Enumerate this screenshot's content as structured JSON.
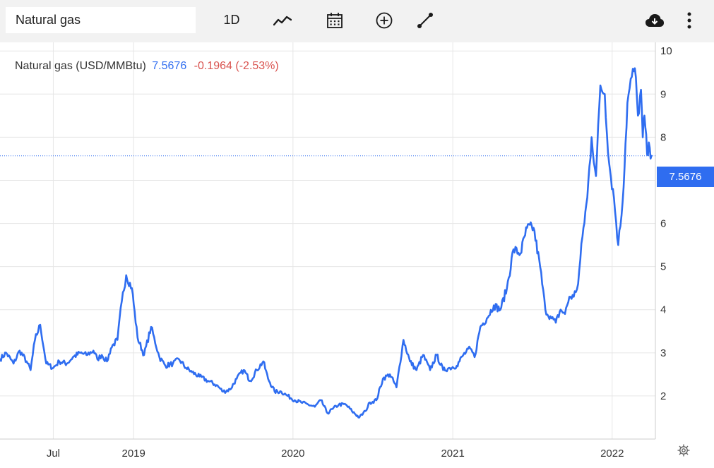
{
  "toolbar": {
    "search_value": "Natural gas",
    "period_label": "1D",
    "icons": [
      "chart-type-icon",
      "calendar-icon",
      "add-indicator-icon",
      "draw-line-icon",
      "download-cloud-icon",
      "more-options-icon"
    ]
  },
  "legend": {
    "name": "Natural gas (USD/MMBtu)",
    "last": "7.5676",
    "change": "-0.1964 (-2.53%)"
  },
  "price_label": "7.5676",
  "colors": {
    "line": "#2f6df0",
    "change": "#d9534f",
    "grid": "#e6e6e6",
    "toolbar_bg": "#f2f2f2"
  },
  "chart_data": {
    "type": "line",
    "title": "",
    "xlabel": "",
    "ylabel": "",
    "series": [
      {
        "name": "Natural gas (USD/MMBtu)",
        "x": [
          "2018-03-01",
          "2018-03-15",
          "2018-04-01",
          "2018-04-15",
          "2018-05-01",
          "2018-05-10",
          "2018-05-20",
          "2018-06-01",
          "2018-06-15",
          "2018-07-01",
          "2018-07-15",
          "2018-08-01",
          "2018-08-15",
          "2018-09-01",
          "2018-09-15",
          "2018-10-01",
          "2018-10-10",
          "2018-10-20",
          "2018-11-01",
          "2018-11-10",
          "2018-11-16",
          "2018-11-25",
          "2018-12-05",
          "2018-12-15",
          "2018-12-28",
          "2019-01-10",
          "2019-01-25",
          "2019-02-10",
          "2019-03-01",
          "2019-03-15",
          "2019-04-01",
          "2019-04-15",
          "2019-05-01",
          "2019-05-15",
          "2019-06-01",
          "2019-06-20",
          "2019-07-10",
          "2019-07-25",
          "2019-08-10",
          "2019-08-25",
          "2019-09-10",
          "2019-09-25",
          "2019-10-10",
          "2019-10-25",
          "2019-11-05",
          "2019-11-20",
          "2019-12-05",
          "2019-12-20",
          "2020-01-05",
          "2020-01-20",
          "2020-02-05",
          "2020-02-20",
          "2020-03-05",
          "2020-03-20",
          "2020-04-01",
          "2020-04-15",
          "2020-05-01",
          "2020-05-15",
          "2020-06-01",
          "2020-06-15",
          "2020-06-25",
          "2020-07-10",
          "2020-07-25",
          "2020-08-10",
          "2020-08-25",
          "2020-09-10",
          "2020-09-25",
          "2020-10-10",
          "2020-10-25",
          "2020-11-10",
          "2020-11-25",
          "2020-12-10",
          "2020-12-25",
          "2021-01-10",
          "2021-01-25",
          "2021-02-10",
          "2021-02-20",
          "2021-03-05",
          "2021-03-20",
          "2021-04-05",
          "2021-04-20",
          "2021-05-05",
          "2021-05-20",
          "2021-06-05",
          "2021-06-20",
          "2021-07-05",
          "2021-07-20",
          "2021-08-01",
          "2021-08-15",
          "2021-08-25",
          "2021-09-05",
          "2021-09-15",
          "2021-09-25",
          "2021-10-05",
          "2021-10-15",
          "2021-10-25",
          "2021-11-05",
          "2021-11-15",
          "2021-11-25",
          "2021-12-05",
          "2021-12-15",
          "2021-12-25",
          "2022-01-05",
          "2022-01-15",
          "2022-01-25",
          "2022-02-05",
          "2022-02-15",
          "2022-02-22",
          "2022-03-01",
          "2022-03-08",
          "2022-03-12",
          "2022-03-16",
          "2022-03-22",
          "2022-03-28",
          "2022-04-01"
        ],
        "values": [
          2.85,
          3.0,
          2.75,
          3.05,
          2.8,
          2.6,
          3.3,
          3.65,
          2.75,
          2.65,
          2.8,
          2.75,
          2.9,
          3.0,
          2.95,
          3.05,
          2.85,
          2.95,
          2.8,
          3.1,
          3.2,
          3.3,
          4.2,
          4.8,
          4.5,
          3.35,
          2.95,
          3.6,
          2.9,
          2.7,
          2.75,
          2.85,
          2.65,
          2.55,
          2.45,
          2.35,
          2.25,
          2.1,
          2.15,
          2.4,
          2.6,
          2.35,
          2.6,
          2.8,
          2.4,
          2.1,
          2.1,
          2.0,
          1.9,
          1.85,
          1.8,
          1.75,
          1.9,
          1.6,
          1.7,
          1.8,
          1.8,
          1.65,
          1.5,
          1.65,
          1.85,
          1.9,
          2.4,
          2.5,
          2.2,
          3.3,
          2.8,
          2.6,
          2.95,
          2.6,
          2.95,
          2.6,
          2.65,
          2.7,
          2.95,
          3.1,
          2.9,
          3.6,
          3.8,
          4.1,
          4.0,
          4.5,
          5.4,
          5.3,
          5.9,
          5.9,
          5.0,
          4.0,
          3.8,
          3.7,
          4.0,
          3.9,
          4.3,
          4.3,
          4.6,
          5.7,
          6.6,
          8.0,
          7.1,
          9.2,
          9.0,
          7.4,
          6.6,
          5.5,
          6.5,
          8.8,
          9.4,
          9.6,
          8.5,
          9.1,
          8.0,
          8.5,
          7.6,
          7.76,
          7.5676
        ]
      }
    ],
    "x_ticks": [
      "Jul",
      "2019",
      "2020",
      "2021",
      "2022"
    ],
    "x_tick_dates": [
      "2018-07-01",
      "2019-01-01",
      "2020-01-01",
      "2021-01-01",
      "2022-01-01"
    ],
    "x_range": [
      "2018-03-01",
      "2022-04-10"
    ],
    "y_ticks": [
      2,
      3,
      4,
      5,
      6,
      7,
      8,
      9,
      10
    ],
    "ylim": [
      1.0,
      10.2
    ],
    "last_value": 7.5676,
    "grid": true,
    "y_axis_side": "right"
  }
}
